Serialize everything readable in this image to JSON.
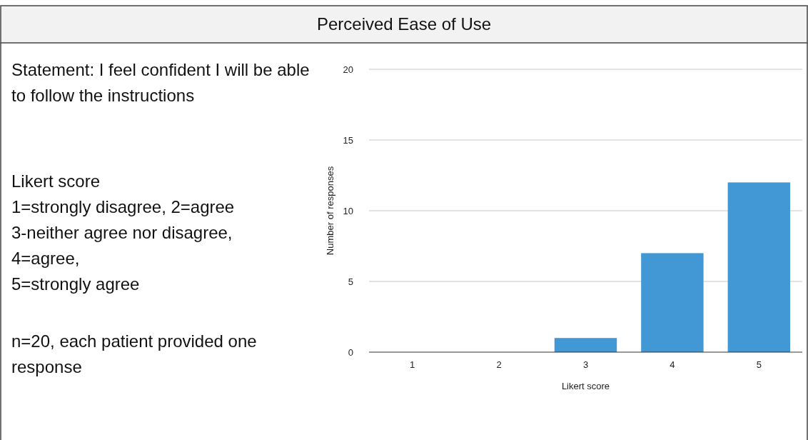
{
  "chart_data": {
    "type": "bar",
    "title": "Perceived Ease of Use",
    "xlabel": "Likert score",
    "ylabel": "Number of responses",
    "categories": [
      "1",
      "2",
      "3",
      "4",
      "5"
    ],
    "values": [
      0,
      0,
      1,
      7,
      12
    ],
    "color": "#4298d5",
    "ylim": [
      0,
      20
    ],
    "yticks": [
      0,
      5,
      10,
      15,
      20
    ],
    "grid": "y",
    "annotations": [
      "Statement: I feel confident I will be able to follow the instructions",
      "Likert score",
      "1=strongly disagree, 2=agree",
      "3-neither agree nor disagree,",
      "4=agree,",
      "5=strongly agree",
      "n=20, each patient provided one response"
    ]
  }
}
